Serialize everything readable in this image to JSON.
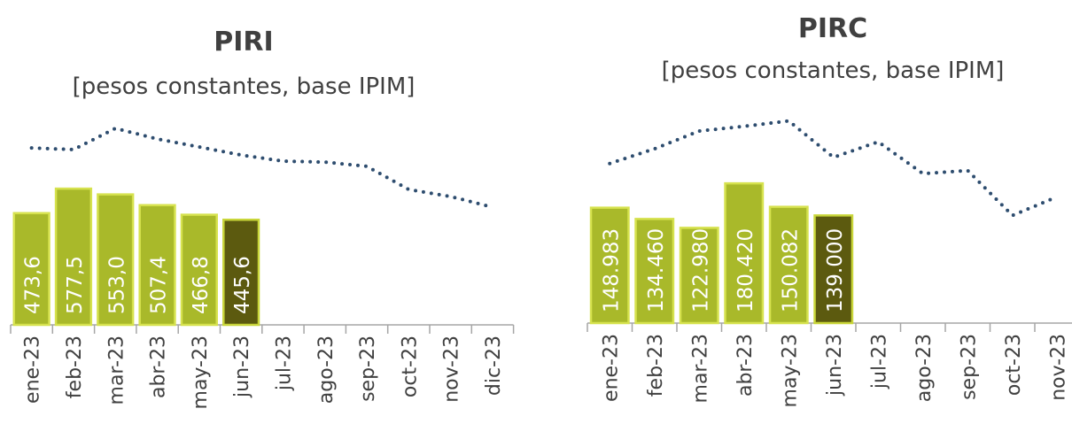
{
  "chart_data": [
    {
      "type": "bar",
      "title": "PIRI",
      "subtitle": "[pesos constantes, base IPIM]",
      "categories": [
        "ene-23",
        "feb-23",
        "mar-23",
        "abr-23",
        "may-23",
        "jun-23",
        "jul-23",
        "ago-23",
        "sep-23",
        "oct-23",
        "nov-23",
        "dic-23"
      ],
      "series": [
        {
          "values": [
            473.6,
            577.5,
            553.0,
            507.4,
            466.8,
            445.6,
            null,
            null,
            null,
            null,
            null,
            null
          ],
          "value_labels": [
            "473,6",
            "577,5",
            "553,0",
            "507,4",
            "466,8",
            "445,6",
            null,
            null,
            null,
            null,
            null,
            null
          ],
          "colors": [
            "#a9b92a",
            "#a9b92a",
            "#a9b92a",
            "#a9b92a",
            "#a9b92a",
            "#5c5a0f"
          ]
        },
        {
          "type": "line",
          "style": "dotted",
          "color": "#2e4d6f",
          "values": [
            750,
            743,
            833,
            788,
            754,
            720,
            694,
            690,
            672,
            574,
            544,
            499
          ]
        }
      ]
    },
    {
      "type": "bar",
      "title": "PIRC",
      "subtitle": "[pesos constantes, base IPIM]",
      "categories": [
        "ene-23",
        "feb-23",
        "mar-23",
        "abr-23",
        "may-23",
        "jun-23",
        "jul-23",
        "ago-23",
        "sep-23",
        "oct-23",
        "nov-23"
      ],
      "series": [
        {
          "values": [
            148983,
            134460,
            122980,
            180420,
            150082,
            139000,
            null,
            null,
            null,
            null,
            null
          ],
          "value_labels": [
            "148.983",
            "134.460",
            "122.980",
            "180.420",
            "150.082",
            "139.000",
            null,
            null,
            null,
            null,
            null
          ],
          "colors": [
            "#a9b92a",
            "#a9b92a",
            "#a9b92a",
            "#a9b92a",
            "#a9b92a",
            "#5c5a0f"
          ]
        },
        {
          "type": "line",
          "style": "dotted",
          "color": "#2e4d6f",
          "values": [
            206000,
            225000,
            248000,
            254000,
            261000,
            214000,
            234000,
            193000,
            197000,
            139000,
            163000
          ]
        }
      ]
    }
  ]
}
